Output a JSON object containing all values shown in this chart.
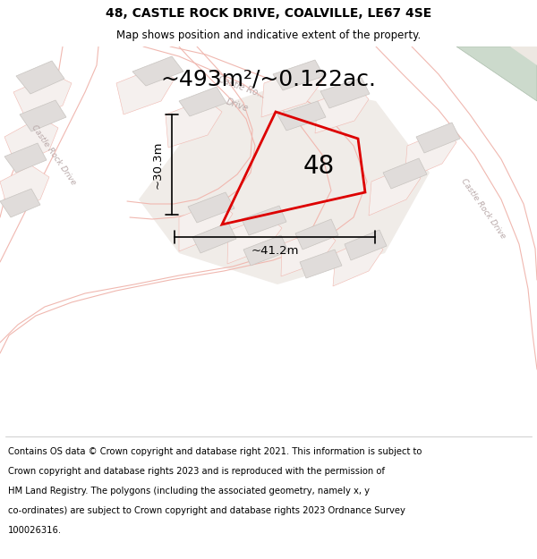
{
  "title": "48, CASTLE ROCK DRIVE, COALVILLE, LE67 4SE",
  "subtitle": "Map shows position and indicative extent of the property.",
  "area_text": "~493m²/~0.122ac.",
  "number_label": "48",
  "width_label": "~41.2m",
  "height_label": "~30.3m",
  "footer_lines": [
    "Contains OS data © Crown copyright and database right 2021. This information is subject to",
    "Crown copyright and database rights 2023 and is reproduced with the permission of",
    "HM Land Registry. The polygons (including the associated geometry, namely x, y",
    "co-ordinates) are subject to Crown copyright and database rights 2023 Ordnance Survey",
    "100026316."
  ],
  "map_bg": "#f7f4f2",
  "road_line_color": "#f0b8b0",
  "building_fill": "#e0dcda",
  "building_edge": "#c8c4c0",
  "plot_color": "#dd0000",
  "green_fill": "#ccdacc",
  "green_edge": "#aabcaa",
  "beige_fill": "#ede8e2",
  "road_label_color": "#b8a8a8",
  "title_fontsize": 10,
  "subtitle_fontsize": 8.5,
  "area_fontsize": 18,
  "number_fontsize": 20,
  "measure_fontsize": 9.5,
  "road_label_fontsize": 6.5,
  "footer_fontsize": 7.2
}
